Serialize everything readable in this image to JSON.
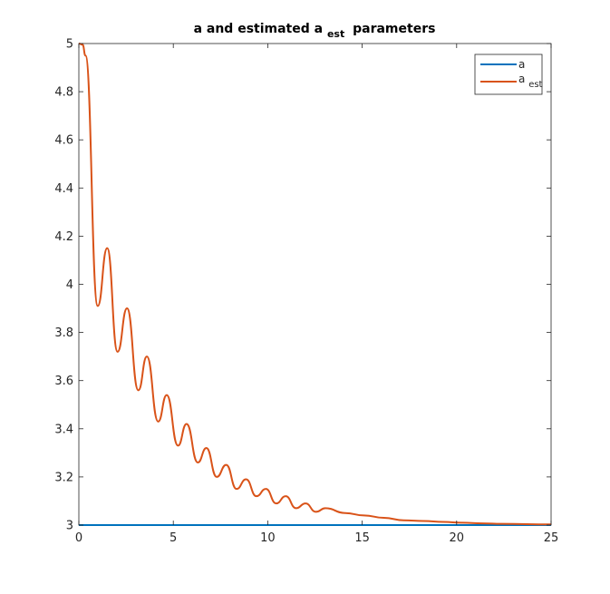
{
  "chart_data": {
    "type": "line",
    "title": {
      "main": "a and estimated a",
      "sub": "est",
      "suffix": "parameters"
    },
    "xlabel": "",
    "ylabel": "",
    "xlim": [
      0,
      25
    ],
    "ylim": [
      3,
      5
    ],
    "x_ticks": [
      "0",
      "5",
      "10",
      "15",
      "20",
      "25"
    ],
    "y_ticks": [
      "3",
      "3.2",
      "3.4",
      "3.6",
      "3.8",
      "4",
      "4.2",
      "4.4",
      "4.6",
      "4.8",
      "5"
    ],
    "grid": false,
    "legend_position": "top-right",
    "series": [
      {
        "name": "a",
        "name_sub": "",
        "color": "#0072BD",
        "model": "constant",
        "value": 3
      },
      {
        "name": "a",
        "name_sub": "est",
        "color": "#D95319",
        "model": "damped-oscillation",
        "initial": 5,
        "final": 3,
        "peaks": [
          {
            "x": 1.0,
            "y": 3.91
          },
          {
            "x": 1.5,
            "y": 4.15
          },
          {
            "x": 2.05,
            "y": 3.72
          },
          {
            "x": 2.55,
            "y": 3.9
          },
          {
            "x": 3.15,
            "y": 3.56
          },
          {
            "x": 3.6,
            "y": 3.7
          },
          {
            "x": 4.2,
            "y": 3.43
          },
          {
            "x": 4.65,
            "y": 3.54
          },
          {
            "x": 5.25,
            "y": 3.33
          },
          {
            "x": 5.7,
            "y": 3.42
          },
          {
            "x": 6.3,
            "y": 3.26
          },
          {
            "x": 6.75,
            "y": 3.32
          },
          {
            "x": 7.3,
            "y": 3.2
          },
          {
            "x": 7.8,
            "y": 3.25
          },
          {
            "x": 8.35,
            "y": 3.15
          },
          {
            "x": 8.85,
            "y": 3.19
          },
          {
            "x": 9.4,
            "y": 3.12
          },
          {
            "x": 9.9,
            "y": 3.15
          },
          {
            "x": 10.45,
            "y": 3.09
          },
          {
            "x": 10.95,
            "y": 3.12
          },
          {
            "x": 11.5,
            "y": 3.07
          },
          {
            "x": 12.0,
            "y": 3.09
          },
          {
            "x": 12.55,
            "y": 3.055
          },
          {
            "x": 13.05,
            "y": 3.07
          },
          {
            "x": 14.1,
            "y": 3.05
          },
          {
            "x": 15.1,
            "y": 3.04
          },
          {
            "x": 16.15,
            "y": 3.03
          },
          {
            "x": 17.2,
            "y": 3.02
          },
          {
            "x": 18.25,
            "y": 3.017
          },
          {
            "x": 19.3,
            "y": 3.013
          },
          {
            "x": 20.3,
            "y": 3.01
          },
          {
            "x": 21.35,
            "y": 3.007
          },
          {
            "x": 22.4,
            "y": 3.005
          },
          {
            "x": 25,
            "y": 3.003
          }
        ]
      }
    ]
  }
}
